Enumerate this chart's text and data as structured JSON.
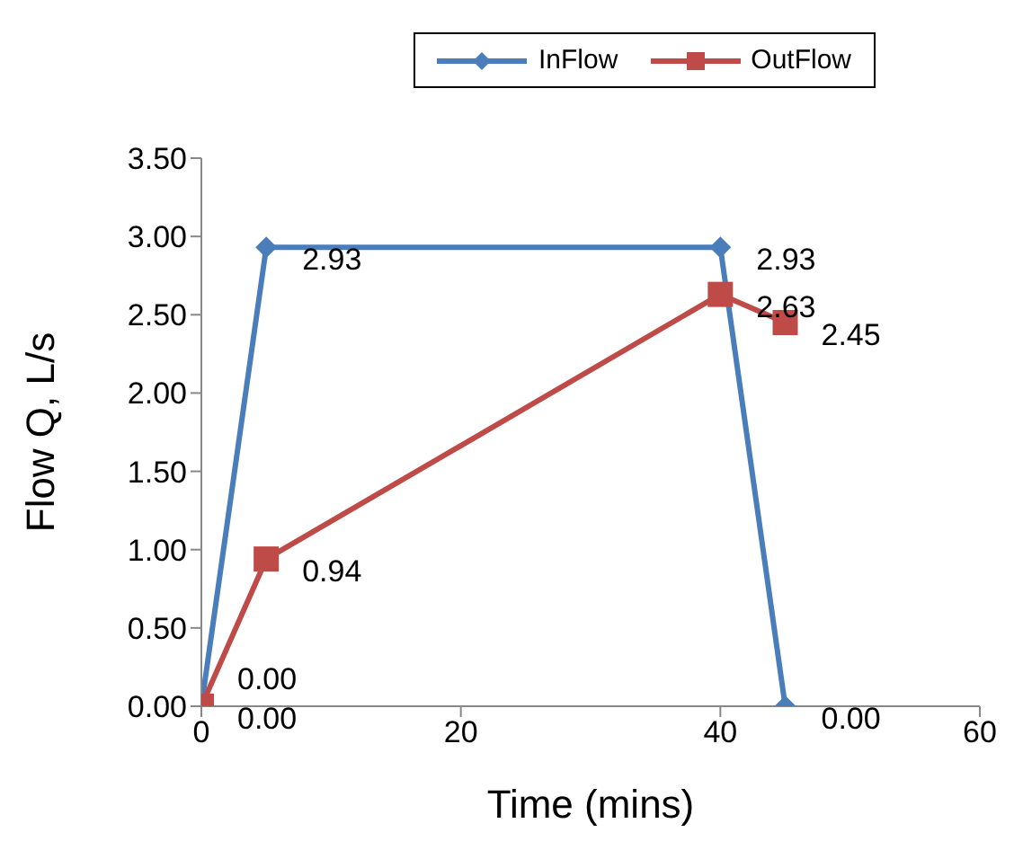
{
  "chart_data": {
    "type": "line",
    "xlabel": "Time (mins)",
    "ylabel": "Flow Q, L/s",
    "xlim": [
      0,
      60
    ],
    "xticks": [
      0,
      20,
      40,
      60
    ],
    "ylim": [
      0,
      3.5
    ],
    "yticks": [
      {
        "value": 0,
        "label": "0.00"
      },
      {
        "value": 0.5,
        "label": "0.50"
      },
      {
        "value": 1,
        "label": "1.00"
      },
      {
        "value": 1.5,
        "label": "1.50"
      },
      {
        "value": 2,
        "label": "2.00"
      },
      {
        "value": 2.5,
        "label": "2.50"
      },
      {
        "value": 3,
        "label": "3.00"
      },
      {
        "value": 3.5,
        "label": "3.50"
      }
    ],
    "legend": "top",
    "series": [
      {
        "name": "InFlow",
        "color": "#4a7ebb",
        "marker": "diamond",
        "x": [
          0,
          5,
          40,
          45
        ],
        "values": [
          0,
          2.93,
          2.93,
          0
        ],
        "value_labels": [
          "0.00",
          "2.93",
          "2.93",
          "0.00"
        ]
      },
      {
        "name": "OutFlow",
        "color": "#be4b48",
        "marker": "square",
        "x": [
          0,
          5,
          40,
          45
        ],
        "values": [
          0,
          0.94,
          2.63,
          2.45
        ],
        "value_labels": [
          "0.00",
          "0.94",
          "2.63",
          "2.45"
        ]
      }
    ]
  }
}
